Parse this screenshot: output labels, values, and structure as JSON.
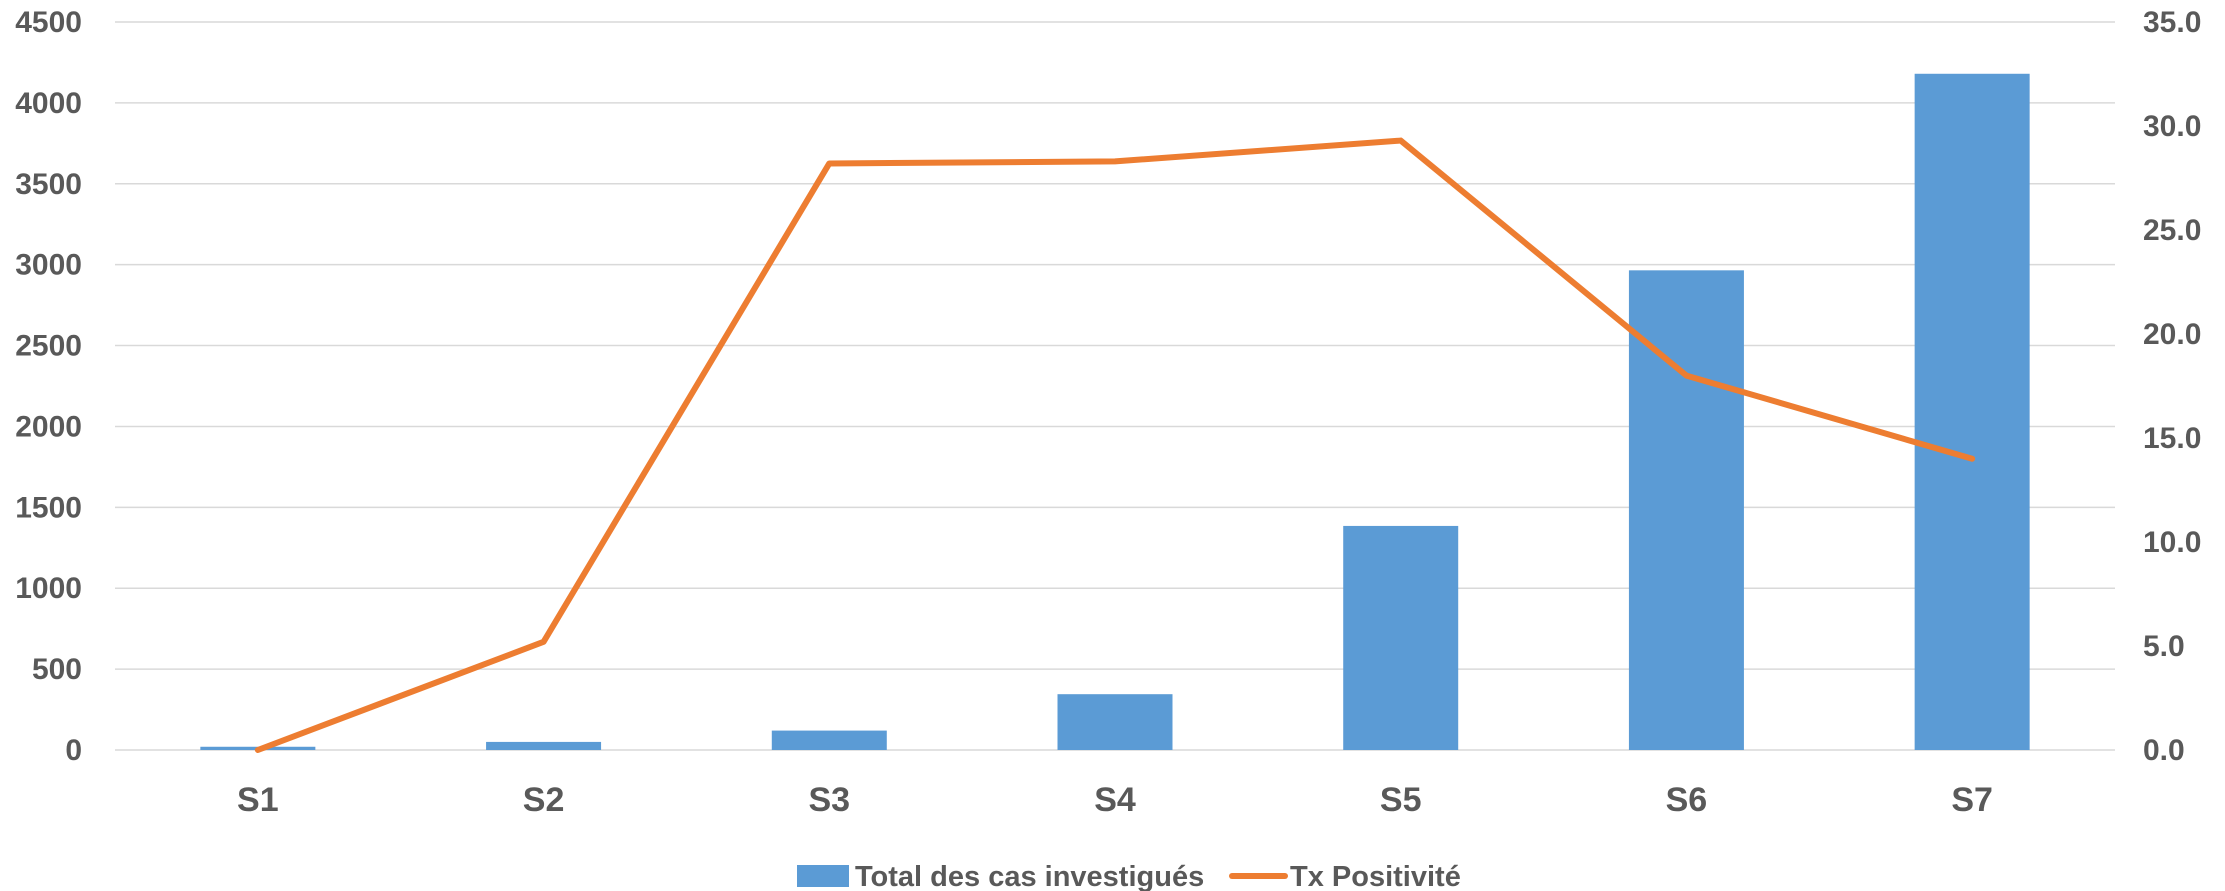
{
  "chart_data": {
    "type": "bar",
    "categories": [
      "S1",
      "S2",
      "S3",
      "S4",
      "S5",
      "S6",
      "S7"
    ],
    "series": [
      {
        "name": "Total des cas investigués",
        "type": "bar",
        "axis": "left",
        "color": "#5B9BD5",
        "values": [
          20,
          50,
          120,
          345,
          1385,
          2965,
          4180
        ]
      },
      {
        "name": "Tx Positivité",
        "type": "line",
        "axis": "right",
        "color": "#ED7D31",
        "values": [
          0.0,
          5.2,
          28.2,
          28.3,
          29.3,
          18.0,
          14.0
        ]
      }
    ],
    "y_left": {
      "min": 0,
      "max": 4500,
      "step": 500,
      "ticks": [
        "0",
        "500",
        "1000",
        "1500",
        "2000",
        "2500",
        "3000",
        "3500",
        "4000",
        "4500"
      ]
    },
    "y_right": {
      "min": 0,
      "max": 35,
      "step": 5,
      "ticks": [
        "0.0",
        "5.0",
        "10.0",
        "15.0",
        "20.0",
        "25.0",
        "30.0",
        "35.0"
      ]
    },
    "grid": true,
    "legend": "bottom-center",
    "title": "",
    "xlabel": "",
    "ylabel": ""
  }
}
